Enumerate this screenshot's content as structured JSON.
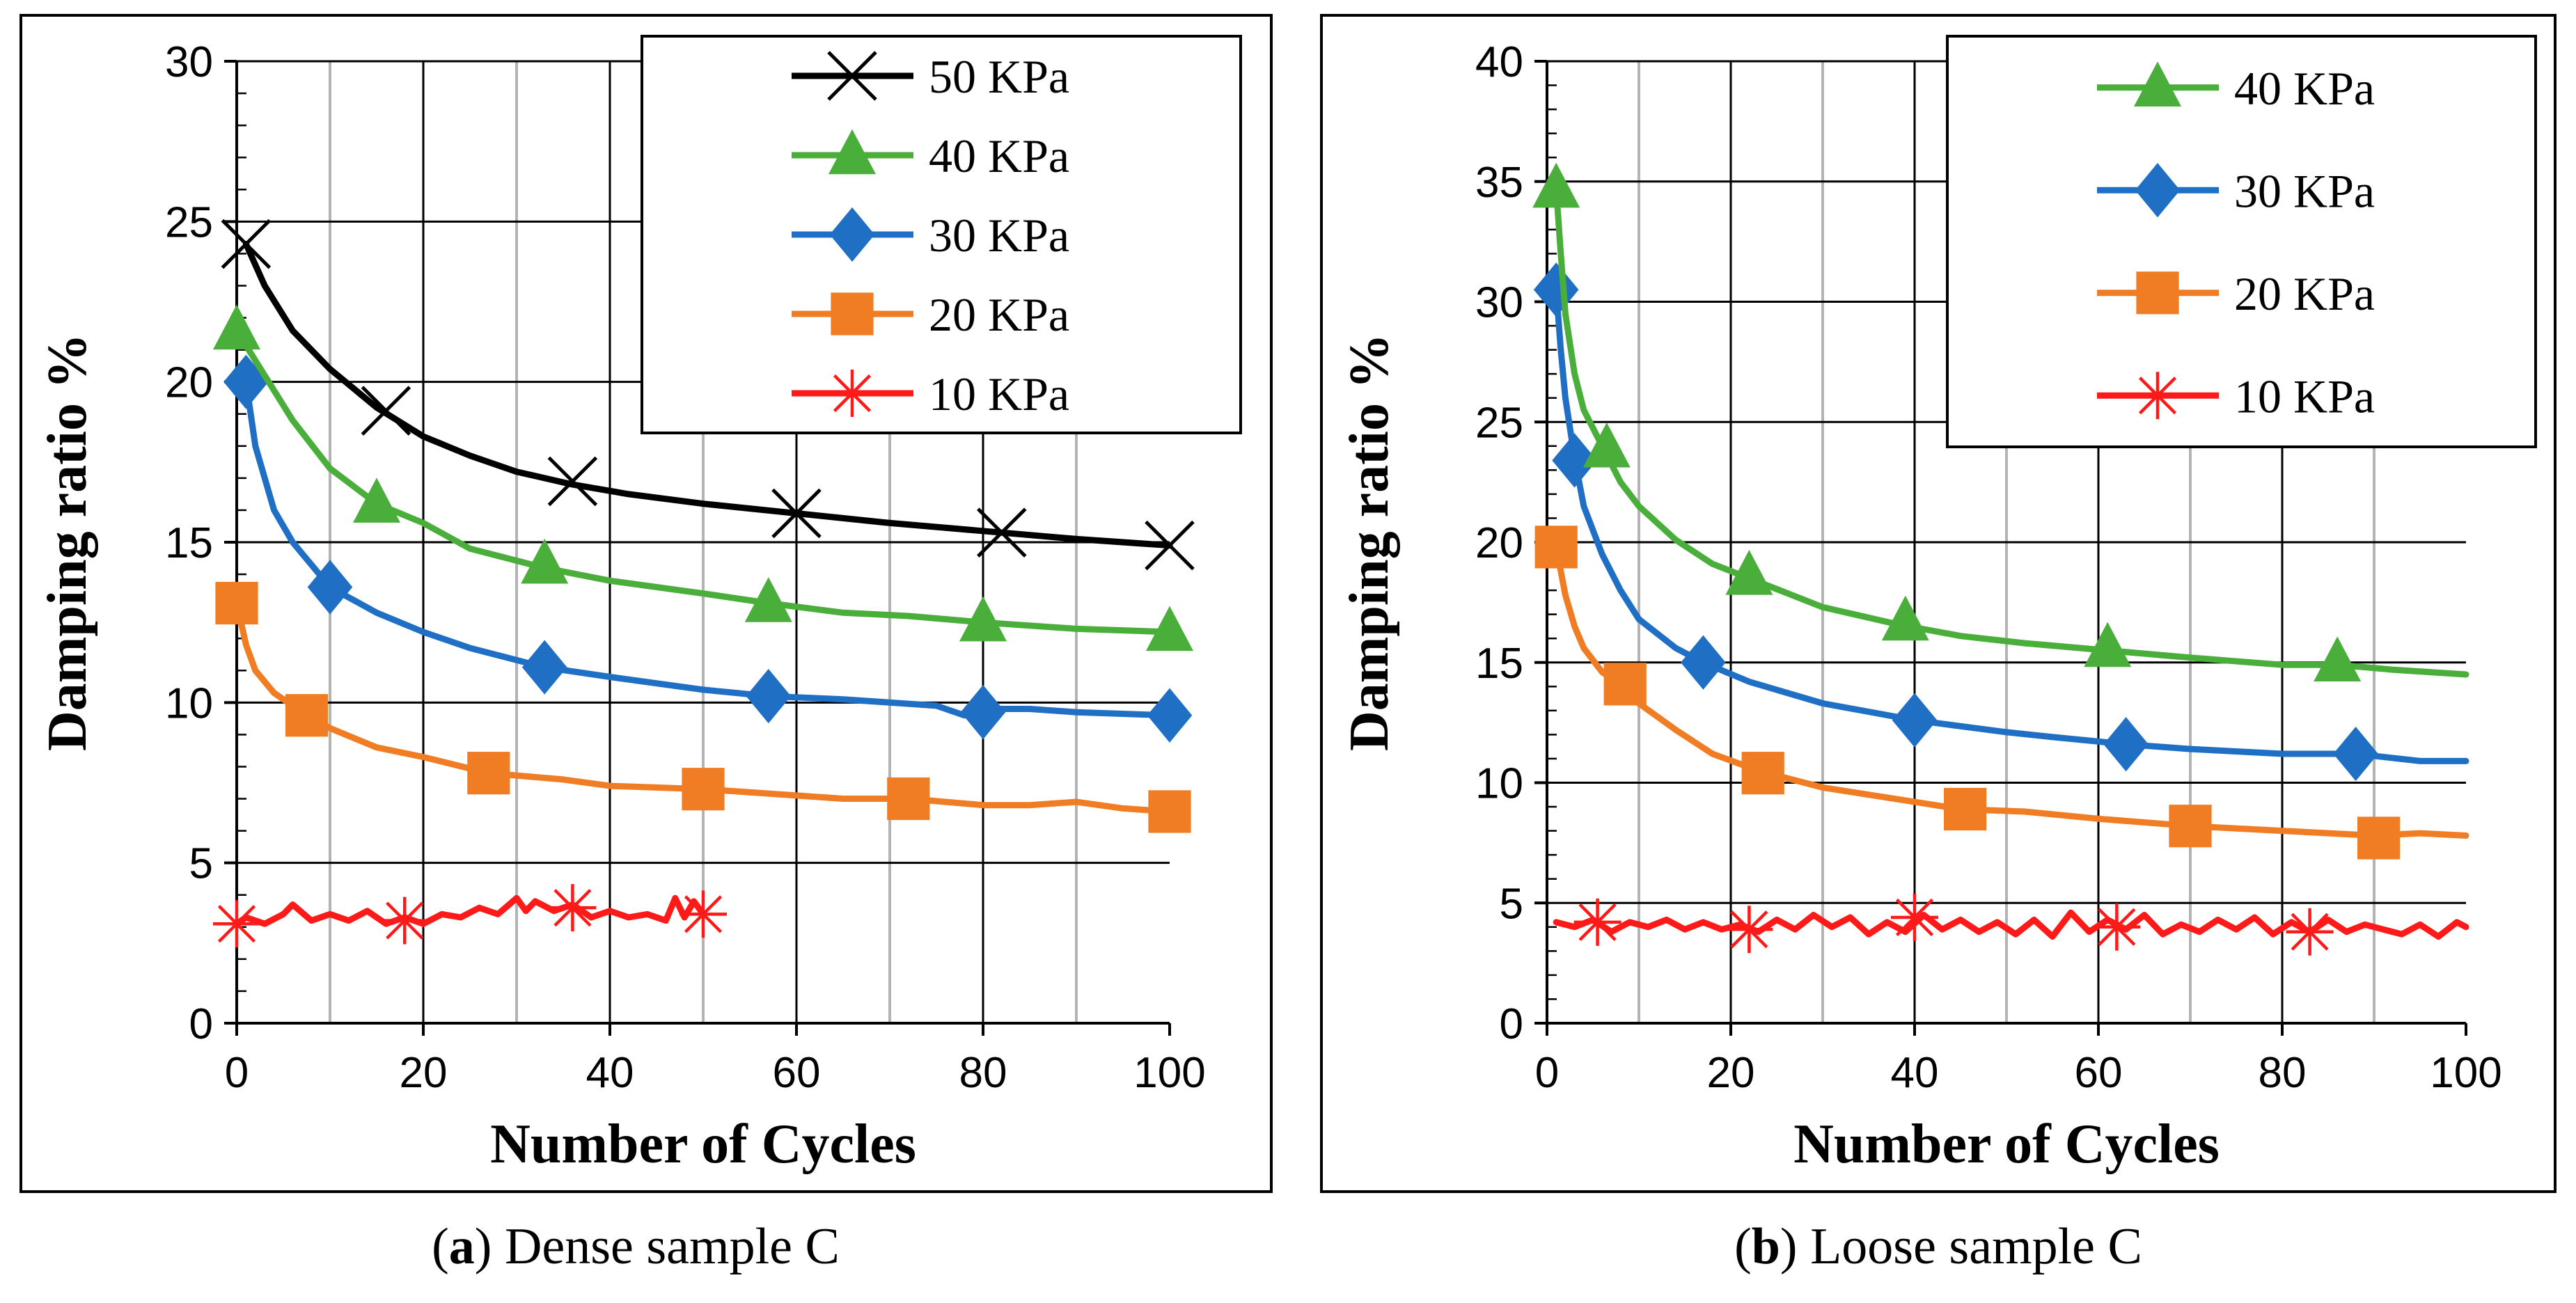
{
  "chart_data": [
    {
      "type": "line",
      "caption_letter": "a",
      "caption_open": "(",
      "caption_close": ")",
      "caption_text": " Dense sample C",
      "xlabel": "Number of Cycles",
      "ylabel": "Damping ratio %",
      "xlim": [
        0,
        100
      ],
      "ylim": [
        0,
        30
      ],
      "xticks": [
        "0",
        "20",
        "40",
        "60",
        "80",
        "100"
      ],
      "yticks": [
        "0",
        "5",
        "10",
        "15",
        "20",
        "25",
        "30"
      ],
      "legend_position": "top-right",
      "series": [
        {
          "name": "50 KPa",
          "color": "#000000",
          "marker": "x",
          "x": [
            1,
            3,
            6,
            10,
            15,
            20,
            25,
            30,
            36,
            42,
            50,
            60,
            70,
            82,
            90,
            100
          ],
          "y": [
            24.3,
            23.0,
            21.6,
            20.4,
            19.2,
            18.3,
            17.7,
            17.2,
            16.8,
            16.5,
            16.2,
            15.9,
            15.6,
            15.3,
            15.1,
            14.9
          ],
          "marker_x": [
            1,
            16,
            36,
            60,
            82,
            100
          ],
          "marker_y": [
            24.3,
            19.1,
            16.9,
            15.9,
            15.3,
            14.9
          ]
        },
        {
          "name": "40 KPa",
          "color": "#4aae3a",
          "marker": "triangle",
          "x": [
            0,
            3,
            6,
            10,
            15,
            20,
            25,
            33,
            40,
            50,
            57,
            65,
            72,
            80,
            90,
            100
          ],
          "y": [
            21.6,
            20.2,
            18.8,
            17.3,
            16.2,
            15.6,
            14.8,
            14.2,
            13.8,
            13.4,
            13.1,
            12.8,
            12.7,
            12.5,
            12.3,
            12.2
          ],
          "marker_x": [
            0,
            15,
            33,
            57,
            80,
            100
          ],
          "marker_y": [
            21.6,
            16.2,
            14.3,
            13.1,
            12.5,
            12.2
          ]
        },
        {
          "name": "30 KPa",
          "color": "#1f6fc4",
          "marker": "diamond",
          "x": [
            1,
            2,
            4,
            6,
            10,
            15,
            20,
            25,
            33,
            40,
            50,
            57,
            65,
            75,
            78,
            80,
            85,
            90,
            100
          ],
          "y": [
            20.0,
            18.0,
            16.0,
            15.0,
            13.6,
            12.8,
            12.2,
            11.7,
            11.1,
            10.8,
            10.4,
            10.2,
            10.1,
            9.9,
            9.6,
            9.8,
            9.8,
            9.7,
            9.6
          ],
          "marker_x": [
            1,
            10,
            33,
            57,
            80,
            100
          ],
          "marker_y": [
            20.0,
            13.6,
            11.1,
            10.2,
            9.7,
            9.6
          ]
        },
        {
          "name": "20 KPa",
          "color": "#f07c24",
          "marker": "square",
          "x": [
            0,
            1,
            2,
            4,
            7,
            10,
            15,
            20,
            27,
            35,
            40,
            50,
            55,
            60,
            65,
            72,
            80,
            85,
            90,
            95,
            100
          ],
          "y": [
            13.1,
            11.8,
            11.0,
            10.3,
            9.7,
            9.2,
            8.6,
            8.3,
            7.8,
            7.6,
            7.4,
            7.3,
            7.2,
            7.1,
            7.0,
            7.0,
            6.8,
            6.8,
            6.9,
            6.7,
            6.6
          ],
          "marker_x": [
            0,
            7.5,
            27,
            50,
            72,
            100
          ],
          "marker_y": [
            13.1,
            9.6,
            7.8,
            7.3,
            7.0,
            6.6
          ]
        },
        {
          "name": "10 KPa",
          "color": "#ff1a1a",
          "marker": "star",
          "x": [
            0,
            1,
            3,
            5,
            6,
            8,
            10,
            12,
            14,
            16,
            18,
            20,
            22,
            24,
            26,
            28,
            30,
            31,
            32,
            34,
            36,
            38,
            40,
            42,
            44,
            46,
            47,
            48,
            49,
            50
          ],
          "y": [
            3.1,
            3.3,
            3.1,
            3.4,
            3.7,
            3.2,
            3.4,
            3.2,
            3.5,
            3.1,
            3.3,
            3.1,
            3.4,
            3.3,
            3.6,
            3.4,
            3.9,
            3.5,
            3.8,
            3.5,
            3.7,
            3.3,
            3.5,
            3.3,
            3.4,
            3.2,
            3.9,
            3.3,
            3.8,
            3.4
          ],
          "marker_x": [
            0,
            18,
            36,
            50
          ],
          "marker_y": [
            3.1,
            3.2,
            3.6,
            3.4
          ]
        }
      ]
    },
    {
      "type": "line",
      "caption_letter": "b",
      "caption_open": "(",
      "caption_close": ")",
      "caption_text": " Loose sample C",
      "xlabel": "Number of Cycles",
      "ylabel": "Damping ratio %",
      "xlim": [
        0,
        100
      ],
      "ylim": [
        0,
        40
      ],
      "xticks": [
        "0",
        "20",
        "40",
        "60",
        "80",
        "100"
      ],
      "yticks": [
        "0",
        "5",
        "10",
        "15",
        "20",
        "25",
        "30",
        "35",
        "40"
      ],
      "legend_position": "top-right",
      "series": [
        {
          "name": "40 KPa",
          "color": "#4aae3a",
          "marker": "triangle",
          "x": [
            1,
            1.5,
            2,
            3,
            4,
            6,
            8,
            10,
            14,
            18,
            22,
            30,
            38,
            45,
            52,
            61,
            70,
            80,
            86,
            92,
            100
          ],
          "y": [
            34.7,
            32.0,
            29.5,
            27.0,
            25.5,
            24.0,
            22.5,
            21.5,
            20.1,
            19.1,
            18.5,
            17.3,
            16.6,
            16.1,
            15.8,
            15.5,
            15.2,
            14.9,
            14.9,
            14.7,
            14.5
          ],
          "marker_x": [
            1,
            6.5,
            22,
            39,
            61,
            86
          ],
          "marker_y": [
            34.7,
            23.9,
            18.6,
            16.7,
            15.6,
            15.0
          ]
        },
        {
          "name": "30 KPa",
          "color": "#1f6fc4",
          "marker": "diamond",
          "x": [
            1,
            1.5,
            2,
            3,
            4,
            6,
            8,
            10,
            14,
            17,
            22,
            30,
            40,
            50,
            55,
            63,
            70,
            80,
            88,
            95,
            100
          ],
          "y": [
            30.5,
            28.0,
            26.0,
            23.5,
            21.5,
            19.5,
            18.0,
            16.8,
            15.6,
            15.0,
            14.2,
            13.3,
            12.6,
            12.1,
            11.9,
            11.6,
            11.4,
            11.2,
            11.2,
            10.9,
            10.9
          ],
          "marker_x": [
            1,
            3,
            17,
            40,
            63,
            88
          ],
          "marker_y": [
            30.5,
            23.4,
            15.0,
            12.6,
            11.6,
            11.2
          ]
        },
        {
          "name": "20 KPa",
          "color": "#f07c24",
          "marker": "square",
          "x": [
            1,
            2,
            3,
            4,
            6,
            8,
            10,
            14,
            18,
            23,
            30,
            40,
            45,
            52,
            60,
            70,
            80,
            90,
            95,
            100
          ],
          "y": [
            19.8,
            17.8,
            16.5,
            15.6,
            14.6,
            14.1,
            13.3,
            12.2,
            11.2,
            10.5,
            9.8,
            9.2,
            8.9,
            8.8,
            8.5,
            8.2,
            8.0,
            7.8,
            7.9,
            7.8
          ],
          "marker_x": [
            1,
            8.5,
            23.5,
            45.5,
            70,
            90.5
          ],
          "marker_y": [
            19.8,
            14.1,
            10.4,
            8.9,
            8.2,
            7.7
          ]
        },
        {
          "name": "10 KPa",
          "color": "#ff1a1a",
          "marker": "star",
          "x": [
            1,
            3,
            5,
            7,
            9,
            11,
            13,
            15,
            17,
            19,
            21,
            23,
            25,
            27,
            29,
            31,
            33,
            35,
            37,
            39,
            41,
            43,
            45,
            47,
            49,
            51,
            53,
            55,
            57,
            59,
            61,
            63,
            65,
            67,
            69,
            71,
            73,
            75,
            77,
            79,
            81,
            83,
            85,
            87,
            89,
            91,
            93,
            95,
            97,
            99,
            100
          ],
          "y": [
            4.2,
            4.0,
            4.3,
            3.8,
            4.2,
            4.0,
            4.3,
            3.9,
            4.2,
            3.9,
            4.1,
            3.8,
            4.3,
            3.9,
            4.5,
            4.0,
            4.4,
            3.7,
            4.2,
            3.8,
            4.5,
            3.9,
            4.3,
            3.8,
            4.2,
            3.7,
            4.3,
            3.6,
            4.6,
            3.8,
            4.3,
            3.9,
            4.5,
            3.7,
            4.1,
            3.8,
            4.3,
            3.9,
            4.4,
            3.7,
            4.2,
            3.8,
            4.3,
            3.8,
            4.1,
            3.9,
            3.7,
            4.1,
            3.6,
            4.2,
            4.0
          ],
          "marker_x": [
            5.5,
            22,
            40,
            62,
            83
          ],
          "marker_y": [
            4.2,
            3.9,
            4.4,
            4.0,
            3.8
          ]
        }
      ]
    }
  ]
}
